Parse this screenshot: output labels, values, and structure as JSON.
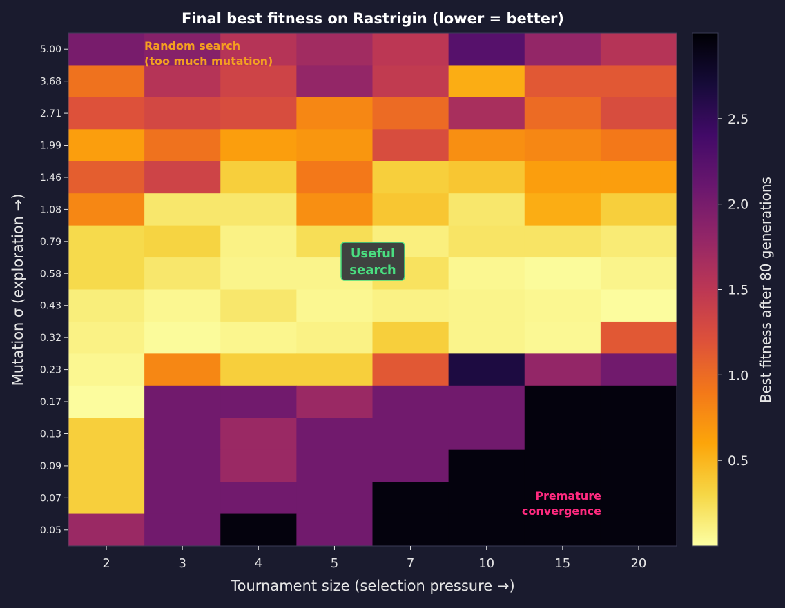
{
  "chart_data": {
    "type": "heatmap",
    "title": "Final best fitness on Rastrigin (lower = better)",
    "xlabel": "Tournament size (selection pressure →)",
    "ylabel": "Mutation σ (exploration →)",
    "colorbar_label": "Best fitness after 80 generations",
    "colormap": "inferno_r",
    "color_range": [
      0,
      3.0
    ],
    "colorbar_ticks": [
      "0.5",
      "1.0",
      "1.5",
      "2.0",
      "2.5"
    ],
    "colorbar_tick_values": [
      0.5,
      1.0,
      1.5,
      2.0,
      2.5
    ],
    "x_categories": [
      "2",
      "3",
      "4",
      "5",
      "7",
      "10",
      "15",
      "20"
    ],
    "y_categories": [
      "5.00",
      "3.68",
      "2.71",
      "1.99",
      "1.46",
      "1.08",
      "0.79",
      "0.58",
      "0.43",
      "0.32",
      "0.23",
      "0.17",
      "0.13",
      "0.09",
      "0.07",
      "0.05"
    ],
    "values": [
      [
        2.0,
        1.9,
        1.55,
        1.7,
        1.5,
        2.25,
        1.8,
        1.55
      ],
      [
        0.95,
        1.55,
        1.35,
        1.8,
        1.45,
        0.55,
        1.15,
        1.15
      ],
      [
        1.2,
        1.3,
        1.25,
        0.8,
        1.0,
        1.65,
        1.0,
        1.25
      ],
      [
        0.65,
        0.95,
        0.65,
        0.7,
        1.25,
        0.75,
        0.8,
        0.9
      ],
      [
        1.1,
        1.35,
        0.35,
        0.9,
        0.35,
        0.4,
        0.65,
        0.65
      ],
      [
        0.8,
        0.18,
        0.18,
        0.75,
        0.4,
        0.18,
        0.55,
        0.35
      ],
      [
        0.28,
        0.32,
        0.1,
        0.25,
        0.12,
        0.2,
        0.2,
        0.15
      ],
      [
        0.28,
        0.18,
        0.08,
        0.08,
        0.22,
        0.06,
        0.03,
        0.08
      ],
      [
        0.13,
        0.06,
        0.18,
        0.06,
        0.1,
        0.08,
        0.06,
        0.02
      ],
      [
        0.1,
        0.03,
        0.07,
        0.1,
        0.35,
        0.08,
        0.05,
        1.15
      ],
      [
        0.06,
        0.8,
        0.35,
        0.35,
        1.15,
        2.65,
        1.8,
        2.05
      ],
      [
        0.02,
        2.05,
        2.05,
        1.75,
        2.05,
        2.05,
        2.95,
        2.95
      ],
      [
        0.35,
        2.05,
        1.75,
        2.05,
        2.05,
        2.05,
        2.95,
        2.95
      ],
      [
        0.35,
        2.05,
        1.75,
        2.05,
        2.05,
        2.95,
        2.95,
        2.95
      ],
      [
        0.35,
        2.05,
        2.05,
        2.05,
        2.95,
        2.95,
        2.95,
        2.95
      ],
      [
        1.75,
        2.05,
        2.95,
        2.05,
        2.95,
        2.95,
        2.95,
        2.95
      ]
    ],
    "annotations": {
      "random_search": [
        "Random search",
        "(too much mutation)"
      ],
      "useful_search": [
        "Useful",
        "search"
      ],
      "premature": [
        "Premature",
        "convergence"
      ]
    },
    "colors": {
      "background": "#1a1b2e",
      "random_search": "#f5a020",
      "useful_search": "#4ade80",
      "premature": "#ff2a7f",
      "text": "#e6e6e6"
    },
    "grid": false
  }
}
